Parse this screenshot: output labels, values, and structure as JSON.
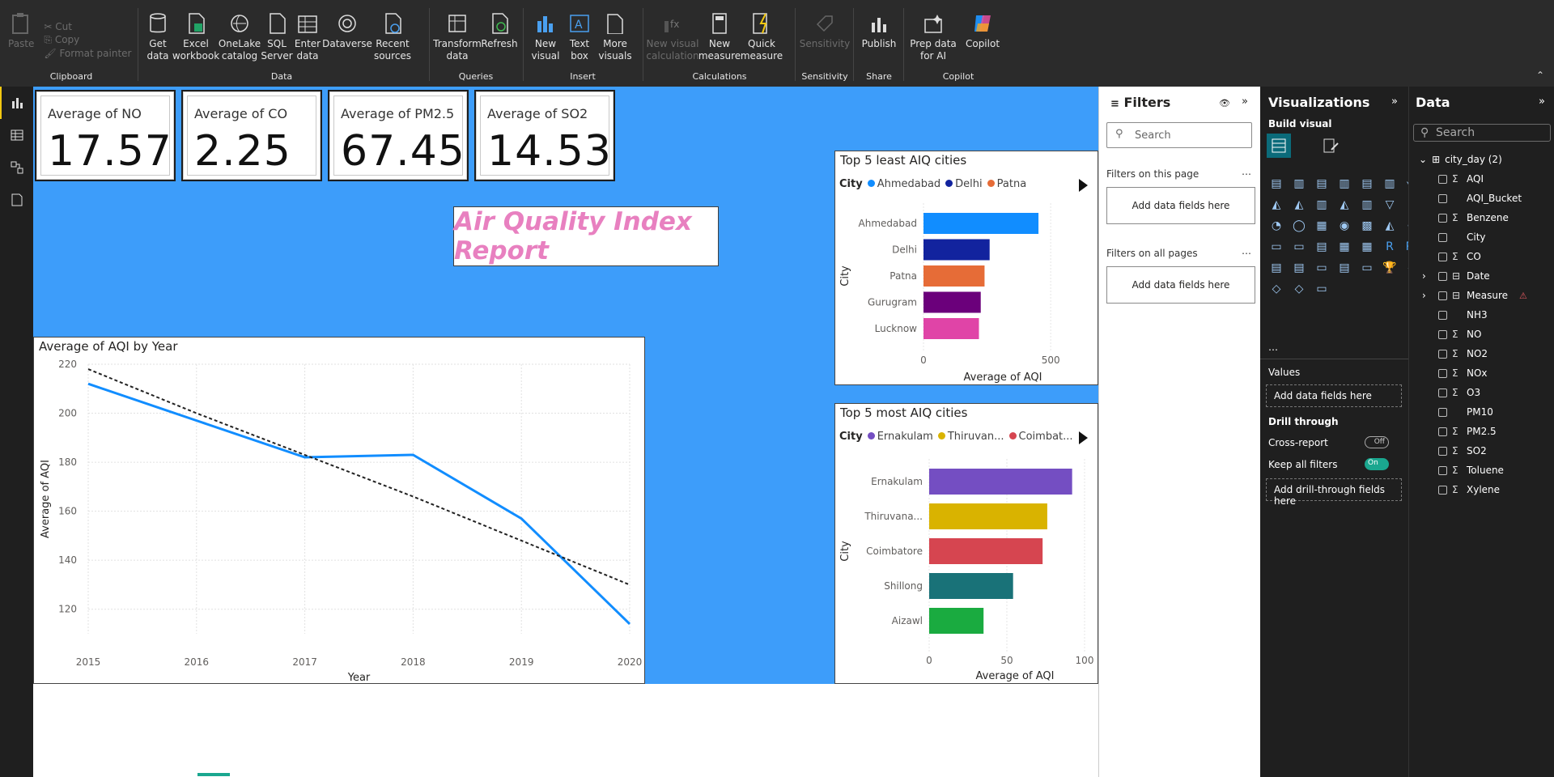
{
  "ribbon": {
    "clipboard": {
      "paste": "Paste",
      "cut": "Cut",
      "copy": "Copy",
      "format_painter": "Format painter",
      "group": "Clipboard"
    },
    "data": {
      "get_data": "Get data",
      "excel": "Excel workbook",
      "onelake": "OneLake catalog",
      "sql": "SQL Server",
      "enter": "Enter data",
      "dataverse": "Dataverse",
      "recent": "Recent sources",
      "group": "Data"
    },
    "queries": {
      "transform": "Transform data",
      "refresh": "Refresh",
      "group": "Queries"
    },
    "insert": {
      "new_visual": "New visual",
      "text_box": "Text box",
      "more_visuals": "More visuals",
      "group": "Insert"
    },
    "calculations": {
      "new_visual_calc": "New visual calculation",
      "new_measure": "New measure",
      "quick_measure": "Quick measure",
      "group": "Calculations"
    },
    "sensitivity": {
      "label": "Sensitivity",
      "group": "Sensitivity"
    },
    "share": {
      "publish": "Publish",
      "group": "Share"
    },
    "copilot": {
      "prep": "Prep data for AI",
      "copilot": "Copilot",
      "group": "Copilot"
    }
  },
  "cards": [
    {
      "label": "Average of NO",
      "value": "17.57"
    },
    {
      "label": "Average of CO",
      "value": "2.25"
    },
    {
      "label": "Average of PM2.5",
      "value": "67.45"
    },
    {
      "label": "Average of SO2",
      "value": "14.53"
    }
  ],
  "report_title": "Air Quality Index Report",
  "line_chart": {
    "chart_data": {
      "type": "line",
      "title": "Average of AQI by Year",
      "xlabel": "Year",
      "ylabel": "Average of AQI",
      "x": [
        2015,
        2016,
        2017,
        2018,
        2019,
        2020
      ],
      "ylim": [
        110,
        220
      ],
      "yticks": [
        120,
        140,
        160,
        180,
        200,
        220
      ],
      "series": [
        {
          "values": [
            212,
            197,
            182,
            183,
            157,
            114
          ],
          "color": "#118dff"
        },
        {
          "values": [
            218,
            200,
            183,
            166,
            148,
            130
          ],
          "color": "#222222",
          "dashed": true
        }
      ]
    }
  },
  "bar_least": {
    "chart_data": {
      "type": "bar",
      "title": "Top 5 least AIQ cities",
      "legend_title": "City",
      "legend": [
        {
          "name": "Ahmedabad",
          "color": "#118dff"
        },
        {
          "name": "Delhi",
          "color": "#12239e"
        },
        {
          "name": "Patna",
          "color": "#e66c37"
        }
      ],
      "ylabel": "City",
      "xlabel": "Average of AQI",
      "categories": [
        "Ahmedabad",
        "Delhi",
        "Patna",
        "Gurugram",
        "Lucknow"
      ],
      "values": [
        452,
        260,
        240,
        225,
        218
      ],
      "colors": [
        "#118dff",
        "#12239e",
        "#e66c37",
        "#6b007b",
        "#e044a7"
      ],
      "xlim": [
        0,
        560
      ],
      "xticks": [
        0,
        500
      ]
    }
  },
  "bar_most": {
    "chart_data": {
      "type": "bar",
      "title": "Top 5 most AIQ cities",
      "legend_title": "City",
      "legend": [
        {
          "name": "Ernakulam",
          "color": "#744ec2"
        },
        {
          "name": "Thiruvan...",
          "color": "#d9b300"
        },
        {
          "name": "Coimbat...",
          "color": "#d64550"
        }
      ],
      "ylabel": "City",
      "xlabel": "Average of AQI",
      "categories": [
        "Ernakulam",
        "Thiruvana...",
        "Coimbatore",
        "Shillong",
        "Aizawl"
      ],
      "values": [
        92,
        76,
        73,
        54,
        35
      ],
      "colors": [
        "#744ec2",
        "#d9b300",
        "#d64550",
        "#197278",
        "#1aab40"
      ],
      "xlim": [
        0,
        100
      ],
      "xticks": [
        0,
        50,
        100
      ]
    }
  },
  "filters": {
    "title": "Filters",
    "search": "Search",
    "on_page": "Filters on this page",
    "all_pages": "Filters on all pages",
    "add": "Add data fields here"
  },
  "viz": {
    "title": "Visualizations",
    "build": "Build visual",
    "values": "Values",
    "add_values": "Add data fields here",
    "drill": "Drill through",
    "cross": "Cross-report",
    "cross_state": "Off",
    "keep": "Keep all filters",
    "keep_state": "On",
    "add_drill": "Add drill-through fields here"
  },
  "data": {
    "title": "Data",
    "search": "Search",
    "table": "city_day (2)",
    "fields": [
      {
        "name": "AQI",
        "sigma": true
      },
      {
        "name": "AQI_Bucket",
        "sigma": false
      },
      {
        "name": "Benzene",
        "sigma": true
      },
      {
        "name": "City",
        "sigma": false
      },
      {
        "name": "CO",
        "sigma": true
      },
      {
        "name": "Date",
        "sigma": false,
        "table": true
      },
      {
        "name": "Measure",
        "sigma": false,
        "table": true,
        "warn": true
      },
      {
        "name": "NH3",
        "sigma": false
      },
      {
        "name": "NO",
        "sigma": true
      },
      {
        "name": "NO2",
        "sigma": true
      },
      {
        "name": "NOx",
        "sigma": true
      },
      {
        "name": "O3",
        "sigma": true
      },
      {
        "name": "PM10",
        "sigma": false
      },
      {
        "name": "PM2.5",
        "sigma": true
      },
      {
        "name": "SO2",
        "sigma": true
      },
      {
        "name": "Toluene",
        "sigma": true
      },
      {
        "name": "Xylene",
        "sigma": true
      }
    ]
  }
}
